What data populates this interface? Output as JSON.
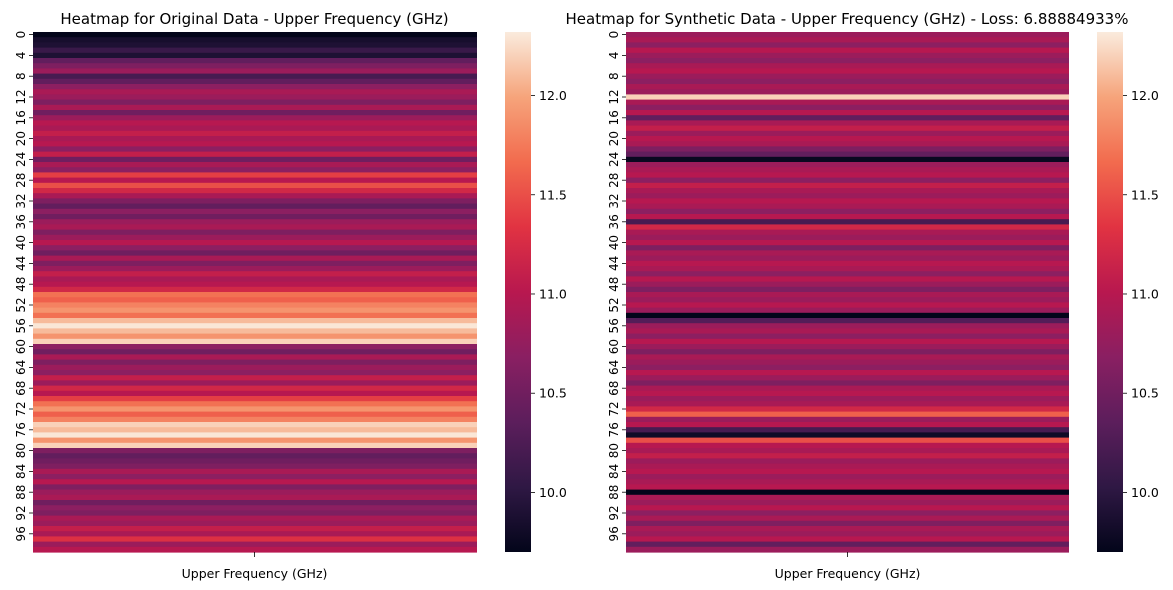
{
  "chart_data": [
    {
      "type": "heatmap",
      "title": "Heatmap for Original Data - Upper Frequency (GHz)",
      "xlabel": "Upper Frequency (GHz)",
      "ylabel": "",
      "row_tick_labels": [
        "0",
        "4",
        "8",
        "12",
        "16",
        "20",
        "24",
        "28",
        "32",
        "36",
        "40",
        "44",
        "48",
        "52",
        "56",
        "60",
        "64",
        "68",
        "72",
        "76",
        "80",
        "84",
        "88",
        "92",
        "96"
      ],
      "colorbar_ticks": [
        "10.0",
        "10.5",
        "11.0",
        "11.5",
        "12.0"
      ],
      "colorbar_range": [
        9.7,
        12.32
      ],
      "values": [
        9.7,
        9.85,
        9.9,
        10.1,
        9.9,
        10.4,
        10.6,
        10.8,
        10.2,
        10.4,
        10.7,
        10.9,
        10.8,
        10.6,
        10.9,
        10.5,
        10.8,
        11.0,
        10.9,
        11.1,
        10.9,
        11.0,
        10.7,
        11.1,
        10.5,
        10.9,
        10.7,
        11.4,
        11.0,
        11.5,
        11.2,
        10.9,
        10.6,
        10.4,
        10.7,
        10.5,
        10.8,
        10.9,
        10.6,
        10.8,
        11.0,
        10.7,
        10.5,
        10.9,
        10.6,
        10.8,
        11.1,
        10.9,
        11.0,
        11.2,
        11.7,
        11.6,
        11.8,
        11.9,
        11.7,
        12.1,
        12.3,
        12.1,
        11.9,
        12.2,
        10.7,
        10.5,
        10.9,
        10.6,
        10.8,
        10.7,
        11.1,
        10.8,
        11.2,
        11.0,
        11.4,
        11.7,
        11.9,
        11.6,
        11.8,
        12.2,
        12.1,
        12.3,
        11.9,
        12.2,
        10.6,
        10.4,
        10.5,
        10.6,
        10.9,
        10.7,
        11.0,
        10.6,
        10.8,
        10.9,
        10.5,
        10.7,
        10.6,
        10.9,
        10.8,
        11.1,
        10.9,
        11.3,
        10.8,
        11.0
      ]
    },
    {
      "type": "heatmap",
      "title": "Heatmap for Synthetic Data - Upper Frequency (GHz) - Loss: 6.88884933%",
      "xlabel": "Upper Frequency (GHz)",
      "ylabel": "",
      "row_tick_labels": [
        "0",
        "4",
        "8",
        "12",
        "16",
        "20",
        "24",
        "28",
        "32",
        "36",
        "40",
        "44",
        "48",
        "52",
        "56",
        "60",
        "64",
        "68",
        "72",
        "76",
        "80",
        "84",
        "88",
        "92",
        "96"
      ],
      "colorbar_ticks": [
        "10.0",
        "10.5",
        "11.0",
        "11.5",
        "12.0"
      ],
      "colorbar_range": [
        9.7,
        12.32
      ],
      "values": [
        10.8,
        10.9,
        10.7,
        11.0,
        10.8,
        10.7,
        10.9,
        11.0,
        10.8,
        10.7,
        10.9,
        10.8,
        12.2,
        10.9,
        10.7,
        11.0,
        10.4,
        10.9,
        11.1,
        10.8,
        11.0,
        10.9,
        10.6,
        10.4,
        9.75,
        10.8,
        10.9,
        11.0,
        10.7,
        11.1,
        10.9,
        10.8,
        11.0,
        10.9,
        10.7,
        11.0,
        10.2,
        11.2,
        10.9,
        10.8,
        11.0,
        10.6,
        10.9,
        10.8,
        11.0,
        10.9,
        10.7,
        11.0,
        10.8,
        10.6,
        10.9,
        10.8,
        11.0,
        10.8,
        9.7,
        10.3,
        10.8,
        10.9,
        10.7,
        11.0,
        10.8,
        10.6,
        10.9,
        10.8,
        10.7,
        11.0,
        10.8,
        10.6,
        10.9,
        11.0,
        10.8,
        10.9,
        11.2,
        11.6,
        10.8,
        11.0,
        10.2,
        9.8,
        11.5,
        11.0,
        10.9,
        11.1,
        10.8,
        10.9,
        11.0,
        10.8,
        10.9,
        11.0,
        9.7,
        10.9,
        10.8,
        11.0,
        10.7,
        10.9,
        10.6,
        10.9,
        10.8,
        11.0,
        10.4,
        10.8
      ]
    }
  ]
}
